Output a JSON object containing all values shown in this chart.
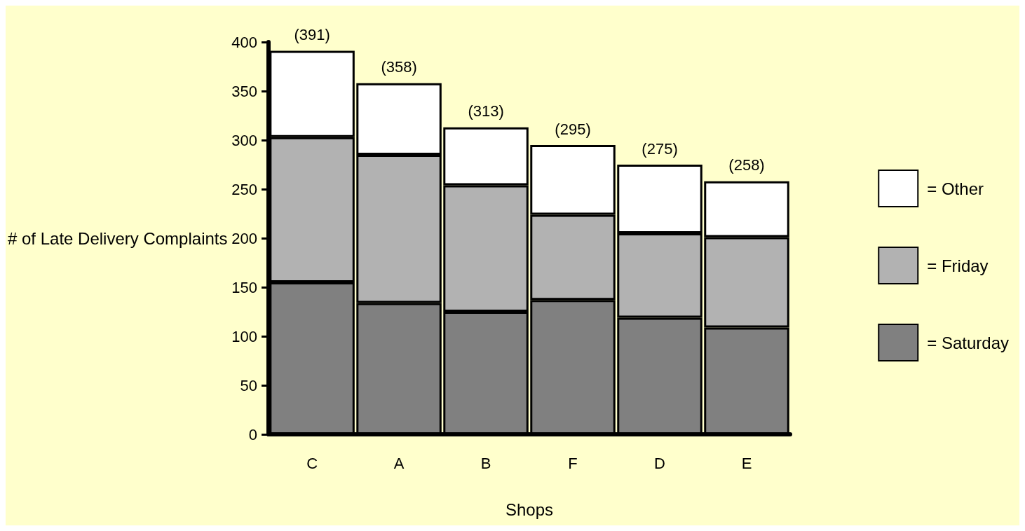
{
  "chart_data": {
    "type": "bar",
    "stacked": true,
    "xlabel": "Shops",
    "ylabel": "# of Late Delivery Complaints",
    "categories": [
      "C",
      "A",
      "B",
      "F",
      "D",
      "E"
    ],
    "series": [
      {
        "name": "= Saturday",
        "color": "#808080",
        "values": [
          155,
          134,
          125,
          137,
          119,
          109
        ]
      },
      {
        "name": "= Friday",
        "color": "#b2b2b2",
        "values": [
          148,
          151,
          129,
          87,
          86,
          92
        ]
      },
      {
        "name": "= Other",
        "color": "#ffffff",
        "values": [
          88,
          73,
          59,
          71,
          70,
          57
        ]
      }
    ],
    "totals": [
      "(391)",
      "(358)",
      "(313)",
      "(295)",
      "(275)",
      "(258)"
    ],
    "ylim": [
      0,
      400
    ],
    "yticks": [
      0,
      50,
      100,
      150,
      200,
      250,
      300,
      350,
      400
    ],
    "grid": false,
    "legend": "right"
  }
}
